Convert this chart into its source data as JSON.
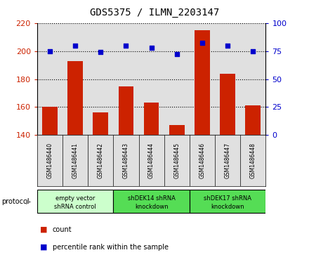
{
  "title": "GDS5375 / ILMN_2203147",
  "samples": [
    "GSM1486440",
    "GSM1486441",
    "GSM1486442",
    "GSM1486443",
    "GSM1486444",
    "GSM1486445",
    "GSM1486446",
    "GSM1486447",
    "GSM1486448"
  ],
  "counts": [
    160,
    193,
    156,
    175,
    163,
    147,
    215,
    184,
    161
  ],
  "percentiles": [
    75,
    80,
    74,
    80,
    78,
    72,
    82,
    80,
    75
  ],
  "ylim_left": [
    140,
    220
  ],
  "ylim_right": [
    0,
    100
  ],
  "yticks_left": [
    140,
    160,
    180,
    200,
    220
  ],
  "yticks_right": [
    0,
    25,
    50,
    75,
    100
  ],
  "bar_color": "#cc2200",
  "dot_color": "#0000cc",
  "bg_color": "#e0e0e0",
  "protocol_groups": [
    {
      "label": "empty vector\nshRNA control",
      "start": 0,
      "end": 3,
      "color": "#ccffcc"
    },
    {
      "label": "shDEK14 shRNA\nknockdown",
      "start": 3,
      "end": 6,
      "color": "#55dd55"
    },
    {
      "label": "shDEK17 shRNA\nknockdown",
      "start": 6,
      "end": 9,
      "color": "#55dd55"
    }
  ],
  "legend_count_label": "count",
  "legend_pct_label": "percentile rank within the sample",
  "protocol_label": "protocol"
}
